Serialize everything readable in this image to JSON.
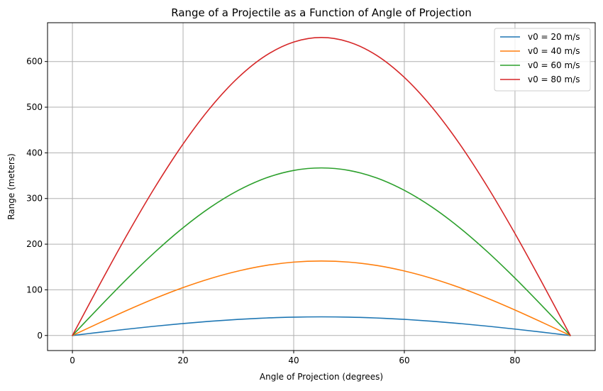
{
  "chart_data": {
    "type": "line",
    "title": "Range of a Projectile as a Function of Angle of Projection",
    "xlabel": "Angle of Projection (degrees)",
    "ylabel": "Range (meters)",
    "xlim": [
      -4.5,
      94.5
    ],
    "ylim": [
      -33,
      685
    ],
    "x_ticks": [
      0,
      20,
      40,
      60,
      80
    ],
    "y_ticks": [
      0,
      100,
      200,
      300,
      400,
      500,
      600
    ],
    "grid": true,
    "legend_position": "top-right",
    "x": [
      0,
      5,
      10,
      15,
      20,
      25,
      30,
      35,
      40,
      45,
      50,
      55,
      60,
      65,
      70,
      75,
      80,
      85,
      90
    ],
    "series": [
      {
        "name": "v0 = 20 m/s",
        "color": "#1f77b4",
        "values": [
          0,
          7.1,
          14.0,
          20.4,
          26.2,
          31.2,
          35.3,
          38.3,
          40.2,
          40.8,
          40.2,
          38.3,
          35.3,
          31.2,
          26.2,
          20.4,
          14.0,
          7.1,
          0
        ]
      },
      {
        "name": "v0 = 40 m/s",
        "color": "#ff7f0e",
        "values": [
          0,
          28.3,
          55.8,
          81.6,
          104.9,
          125.0,
          141.3,
          153.4,
          160.7,
          163.1,
          160.7,
          153.4,
          141.3,
          125.0,
          104.9,
          81.6,
          55.8,
          28.3,
          0
        ]
      },
      {
        "name": "v0 = 60 m/s",
        "color": "#2ca02c",
        "values": [
          0,
          63.7,
          125.6,
          183.5,
          235.9,
          281.2,
          317.9,
          345.0,
          361.5,
          367.0,
          361.5,
          345.0,
          317.9,
          281.2,
          235.9,
          183.5,
          125.6,
          63.7,
          0
        ]
      },
      {
        "name": "v0 = 80 m/s",
        "color": "#d62728",
        "values": [
          0,
          113.3,
          223.2,
          326.2,
          419.4,
          499.9,
          565.2,
          613.4,
          642.7,
          652.6,
          642.7,
          613.4,
          565.2,
          499.9,
          419.4,
          326.2,
          223.2,
          113.3,
          0
        ]
      }
    ]
  }
}
